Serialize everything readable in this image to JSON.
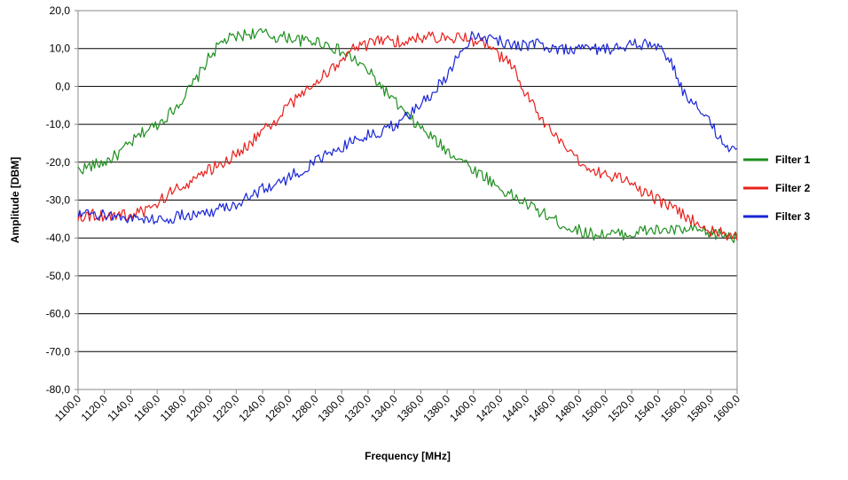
{
  "chart_data": {
    "type": "line",
    "title": "",
    "xlabel": "Frequency [MHz]",
    "ylabel": "Amplitude [DBM]",
    "xlim": [
      1100,
      1600
    ],
    "ylim": [
      -80,
      20
    ],
    "x_ticks": [
      1100,
      1120,
      1140,
      1160,
      1180,
      1200,
      1220,
      1240,
      1260,
      1280,
      1300,
      1320,
      1340,
      1360,
      1380,
      1400,
      1420,
      1440,
      1460,
      1480,
      1500,
      1520,
      1540,
      1560,
      1580,
      1600
    ],
    "x_tick_labels": [
      "1100,0",
      "1120,0",
      "1140,0",
      "1160,0",
      "1180,0",
      "1200,0",
      "1220,0",
      "1240,0",
      "1260,0",
      "1280,0",
      "1300,0",
      "1320,0",
      "1340,0",
      "1360,0",
      "1380,0",
      "1400,0",
      "1420,0",
      "1440,0",
      "1460,0",
      "1480,0",
      "1500,0",
      "1520,0",
      "1540,0",
      "1560,0",
      "1580,0",
      "1600,0"
    ],
    "y_ticks": [
      20,
      10,
      0,
      -10,
      -20,
      -30,
      -40,
      -50,
      -60,
      -70,
      -80
    ],
    "y_tick_labels": [
      "20,0",
      "10,0",
      "0,0",
      "-10,0",
      "-20,0",
      "-30,0",
      "-40,0",
      "-50,0",
      "-60,0",
      "-70,0",
      "-80,0"
    ],
    "grid": "horizontal",
    "legend_position": "right",
    "series": [
      {
        "name": "Filter 1",
        "color": "#1f8f1f",
        "x": [
          1100,
          1110,
          1120,
          1130,
          1140,
          1150,
          1160,
          1170,
          1180,
          1190,
          1200,
          1210,
          1220,
          1230,
          1240,
          1250,
          1260,
          1270,
          1280,
          1290,
          1300,
          1310,
          1320,
          1330,
          1340,
          1350,
          1360,
          1370,
          1380,
          1390,
          1400,
          1410,
          1420,
          1430,
          1440,
          1450,
          1460,
          1470,
          1480,
          1490,
          1500,
          1510,
          1520,
          1530,
          1540,
          1550,
          1560,
          1570,
          1580,
          1590,
          1600
        ],
        "y": [
          -22,
          -21,
          -20,
          -18,
          -15,
          -12,
          -10,
          -7,
          -3,
          2,
          8,
          12,
          13,
          14,
          14,
          13,
          13,
          12,
          12,
          11,
          9,
          7,
          4,
          0,
          -4,
          -8,
          -11,
          -14,
          -17,
          -19,
          -22,
          -24,
          -27,
          -29,
          -31,
          -33,
          -35,
          -37,
          -38,
          -39,
          -39,
          -39,
          -39,
          -38,
          -38,
          -38,
          -38,
          -38,
          -39,
          -39,
          -40
        ]
      },
      {
        "name": "Filter 2",
        "color": "#e8201b",
        "x": [
          1100,
          1110,
          1120,
          1130,
          1140,
          1150,
          1160,
          1170,
          1180,
          1190,
          1200,
          1210,
          1220,
          1230,
          1240,
          1250,
          1260,
          1270,
          1280,
          1290,
          1300,
          1310,
          1320,
          1330,
          1340,
          1350,
          1360,
          1370,
          1380,
          1390,
          1400,
          1410,
          1420,
          1430,
          1440,
          1450,
          1460,
          1470,
          1480,
          1490,
          1500,
          1510,
          1520,
          1530,
          1540,
          1550,
          1560,
          1570,
          1580,
          1590,
          1600
        ],
        "y": [
          -34,
          -34,
          -34,
          -34,
          -34,
          -33,
          -31,
          -28,
          -26,
          -24,
          -22,
          -20,
          -18,
          -15,
          -12,
          -9,
          -5,
          -2,
          1,
          4,
          7,
          10,
          11,
          12,
          12,
          12,
          13,
          13,
          13,
          13,
          12,
          11,
          8,
          5,
          -2,
          -8,
          -12,
          -17,
          -20,
          -22,
          -23,
          -24,
          -26,
          -28,
          -30,
          -32,
          -34,
          -36,
          -38,
          -39,
          -40
        ]
      },
      {
        "name": "Filter 3",
        "color": "#1a25d6",
        "x": [
          1100,
          1110,
          1120,
          1130,
          1140,
          1150,
          1160,
          1170,
          1180,
          1190,
          1200,
          1210,
          1220,
          1230,
          1240,
          1250,
          1260,
          1270,
          1280,
          1290,
          1300,
          1310,
          1320,
          1330,
          1340,
          1350,
          1360,
          1370,
          1380,
          1390,
          1400,
          1410,
          1420,
          1430,
          1440,
          1450,
          1460,
          1470,
          1480,
          1490,
          1500,
          1510,
          1520,
          1530,
          1540,
          1550,
          1560,
          1570,
          1580,
          1590,
          1600
        ],
        "y": [
          -34,
          -34,
          -34,
          -34,
          -35,
          -35,
          -35,
          -35,
          -34,
          -34,
          -33,
          -32,
          -31,
          -29,
          -27,
          -26,
          -24,
          -22,
          -20,
          -18,
          -16,
          -14,
          -13,
          -12,
          -10,
          -8,
          -5,
          -1,
          3,
          9,
          14,
          13,
          12,
          11,
          11,
          11,
          10,
          10,
          10,
          10,
          10,
          10,
          11,
          11,
          11,
          6,
          -2,
          -6,
          -10,
          -15,
          -18
        ]
      }
    ]
  }
}
